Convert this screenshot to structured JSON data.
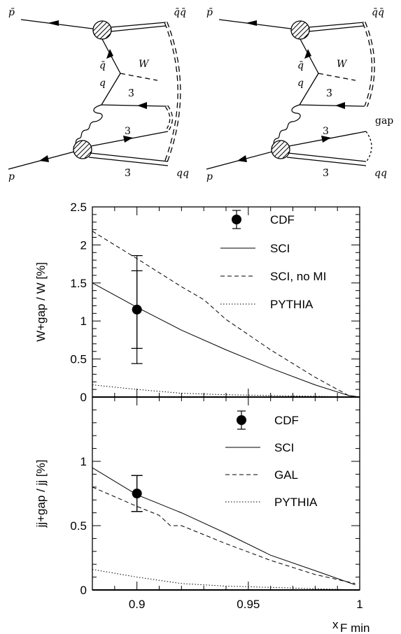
{
  "diagrams": [
    {
      "labels": {
        "pbar": "p̄",
        "p": "p",
        "qqbar": "q̄q̄",
        "qq": "qq",
        "qbar": "q̄",
        "q": "q",
        "W": "W",
        "three_bar_top": "3̄",
        "three": "3",
        "three_bar_bottom": "3̄"
      }
    },
    {
      "labels": {
        "pbar": "p̄",
        "p": "p",
        "qqbar": "q̄q̄",
        "qq": "qq",
        "gap": "gap",
        "qbar": "q̄",
        "q": "q",
        "W": "W",
        "three_bar_top": "3̄",
        "three": "3",
        "three_bar_bottom": "3̄"
      }
    }
  ],
  "chart_data": [
    {
      "type": "line",
      "ylabel": "W+gap / W  [%]",
      "xlim": [
        0.88,
        1.0
      ],
      "ylim": [
        0,
        2.5
      ],
      "yticks": [
        "0",
        "0.5",
        "1",
        "1.5",
        "2",
        "2.5"
      ],
      "series": [
        {
          "name": "CDF",
          "style": "point",
          "points": [
            {
              "x": 0.9,
              "y": 1.15,
              "err_inner": [
                0.64,
                1.66
              ],
              "err_outer": [
                0.44,
                1.86
              ]
            }
          ]
        },
        {
          "name": "SCI",
          "style": "solid",
          "x": [
            0.88,
            0.9,
            0.92,
            0.94,
            0.96,
            0.98,
            0.995,
            1.0
          ],
          "y": [
            1.5,
            1.18,
            0.88,
            0.62,
            0.38,
            0.16,
            0.02,
            0.0
          ]
        },
        {
          "name": "SCI, no MI",
          "style": "dashed",
          "x": [
            0.88,
            0.9,
            0.92,
            0.93,
            0.94,
            0.96,
            0.98,
            0.995,
            1.0
          ],
          "y": [
            2.18,
            1.82,
            1.45,
            1.28,
            1.02,
            0.62,
            0.26,
            0.02,
            0.0
          ]
        },
        {
          "name": "PYTHIA",
          "style": "dotted",
          "x": [
            0.88,
            0.9,
            0.92,
            0.94,
            0.96,
            0.98,
            1.0
          ],
          "y": [
            0.16,
            0.1,
            0.05,
            0.03,
            0.02,
            0.01,
            0.0
          ]
        }
      ]
    },
    {
      "type": "line",
      "ylabel": "jj+gap / jj  [%]",
      "xlabel": "x",
      "xlabel_sub": "F min",
      "xlim": [
        0.88,
        1.0
      ],
      "ylim": [
        0,
        1.5
      ],
      "yticks": [
        "0",
        "0.5",
        "1"
      ],
      "xticks": [
        "0.9",
        "0.95",
        "1"
      ],
      "series": [
        {
          "name": "CDF",
          "style": "point",
          "points": [
            {
              "x": 0.9,
              "y": 0.75,
              "err_inner": [
                0.61,
                0.89
              ],
              "err_outer": [
                0.61,
                0.89
              ]
            }
          ]
        },
        {
          "name": "SCI",
          "style": "solid",
          "x": [
            0.88,
            0.9,
            0.92,
            0.94,
            0.96,
            0.98,
            0.998
          ],
          "y": [
            0.95,
            0.74,
            0.6,
            0.44,
            0.27,
            0.15,
            0.04
          ]
        },
        {
          "name": "GAL",
          "style": "dashed",
          "x": [
            0.88,
            0.9,
            0.91,
            0.915,
            0.92,
            0.93,
            0.94,
            0.96,
            0.98,
            0.998
          ],
          "y": [
            0.8,
            0.65,
            0.58,
            0.5,
            0.5,
            0.43,
            0.36,
            0.23,
            0.12,
            0.05
          ]
        },
        {
          "name": "PYTHIA",
          "style": "dotted",
          "x": [
            0.88,
            0.9,
            0.92,
            0.94,
            0.96,
            0.98,
            1.0
          ],
          "y": [
            0.16,
            0.1,
            0.05,
            0.03,
            0.02,
            0.01,
            0.0
          ]
        }
      ]
    }
  ]
}
